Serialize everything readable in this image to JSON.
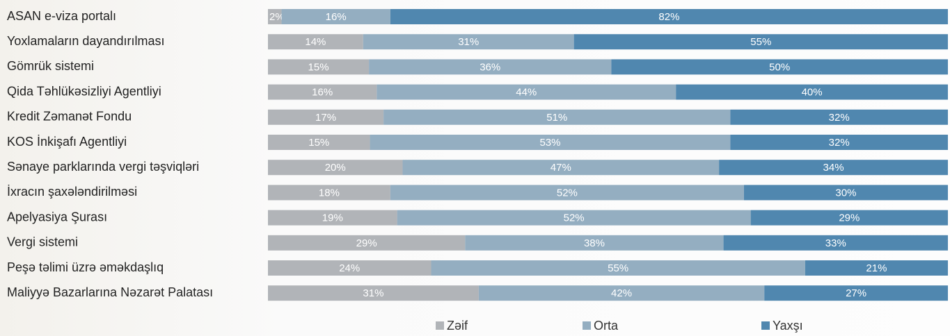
{
  "chart_data": {
    "type": "stacked-barh",
    "categories": [
      "ASAN e-viza portalı",
      "Yoxlamaların dayandırılması",
      "Gömrük sistemi",
      "Qida Təhlükəsizliyi Agentliyi",
      "Kredit Zəmanət Fondu",
      "KOS İnkişafı Agentliyi",
      "Sənaye parklarında vergi təşviqləri",
      "İxracın şaxələndirilməsi",
      "Apelyasiya Şurası",
      "Vergi sistemi",
      "Peşə təlimi üzrə əməkdaşlıq",
      "Maliyyə Bazarlarına Nəzarət Palatası"
    ],
    "series": [
      {
        "name": "Zəif",
        "color": "#b1b4b8",
        "values": [
          2,
          14,
          15,
          16,
          17,
          15,
          20,
          18,
          19,
          29,
          24,
          31
        ],
        "value_labels": [
          "2%",
          "14%",
          "15%",
          "16%",
          "17%",
          "15%",
          "20%",
          "18%",
          "19%",
          "29%",
          "24%",
          "31%"
        ]
      },
      {
        "name": "Orta",
        "color": "#94aec1",
        "values": [
          16,
          31,
          36,
          44,
          51,
          53,
          47,
          52,
          52,
          38,
          55,
          42
        ],
        "value_labels": [
          "16%",
          "31%",
          "36%",
          "44%",
          "51%",
          "53%",
          "47%",
          "52%",
          "52%",
          "38%",
          "55%",
          "42%"
        ]
      },
      {
        "name": "Yaxşı",
        "color": "#5087af",
        "values": [
          82,
          55,
          50,
          40,
          32,
          32,
          34,
          30,
          29,
          33,
          21,
          27
        ],
        "value_labels": [
          "82%",
          "55%",
          "50%",
          "40%",
          "32%",
          "32%",
          "34%",
          "30%",
          "29%",
          "33%",
          "21%",
          "27%"
        ]
      }
    ],
    "legend": "bottom"
  }
}
